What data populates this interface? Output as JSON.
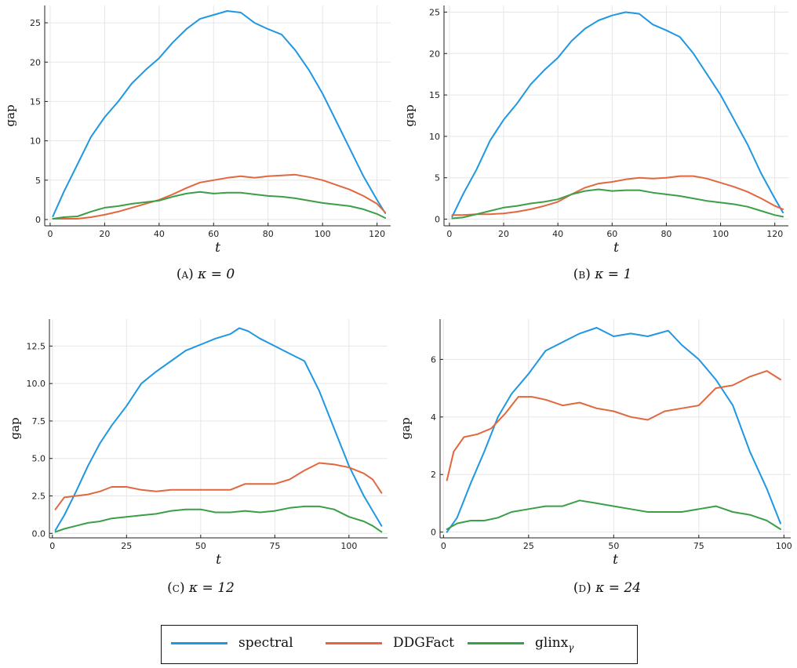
{
  "colors": {
    "spectral": "#1f97e2",
    "ddgfact": "#e2673f",
    "glinx": "#3c9e47"
  },
  "legend": {
    "items": [
      {
        "key": "spectral",
        "label": "spectral"
      },
      {
        "key": "ddgfact",
        "label": "DDGFact"
      },
      {
        "key": "glinx",
        "label": "glinx",
        "sub": "γ"
      }
    ]
  },
  "chart_data": [
    {
      "type": "line",
      "caption": {
        "letter": "(a)",
        "kappa": "κ = 0"
      },
      "xlabel": "t",
      "ylabel": "gap",
      "xlim": [
        -2,
        125
      ],
      "ylim": [
        -0.8,
        27.2
      ],
      "xticks": [
        0,
        20,
        40,
        60,
        80,
        100,
        120
      ],
      "yticks": [
        0,
        5,
        10,
        15,
        20,
        25
      ],
      "grid": true,
      "series": [
        {
          "key": "spectral",
          "name": "spectral",
          "x": [
            1,
            5,
            10,
            15,
            20,
            25,
            30,
            35,
            40,
            45,
            50,
            55,
            60,
            65,
            70,
            75,
            80,
            85,
            90,
            95,
            100,
            105,
            110,
            115,
            120,
            123
          ],
          "y": [
            0.4,
            3.5,
            7.0,
            10.5,
            13.0,
            15.0,
            17.3,
            19.0,
            20.5,
            22.5,
            24.2,
            25.5,
            26.0,
            26.5,
            26.3,
            25.0,
            24.2,
            23.5,
            21.5,
            19.0,
            16.0,
            12.5,
            9.0,
            5.5,
            2.5,
            0.8
          ]
        },
        {
          "key": "ddgfact",
          "name": "DDGFact",
          "x": [
            1,
            5,
            10,
            15,
            20,
            25,
            30,
            35,
            40,
            45,
            50,
            55,
            60,
            65,
            70,
            75,
            80,
            85,
            90,
            95,
            100,
            105,
            110,
            115,
            120,
            123
          ],
          "y": [
            0.1,
            0.1,
            0.1,
            0.3,
            0.6,
            1.0,
            1.5,
            2.0,
            2.5,
            3.2,
            4.0,
            4.7,
            5.0,
            5.3,
            5.5,
            5.3,
            5.5,
            5.6,
            5.7,
            5.4,
            5.0,
            4.4,
            3.8,
            3.0,
            2.0,
            0.9
          ]
        },
        {
          "key": "glinx",
          "name": "glinx",
          "x": [
            1,
            5,
            10,
            15,
            20,
            25,
            30,
            35,
            40,
            45,
            50,
            55,
            60,
            65,
            70,
            75,
            80,
            85,
            90,
            95,
            100,
            105,
            110,
            115,
            120,
            123
          ],
          "y": [
            0.1,
            0.3,
            0.4,
            1.0,
            1.5,
            1.7,
            2.0,
            2.2,
            2.4,
            2.9,
            3.3,
            3.5,
            3.3,
            3.4,
            3.4,
            3.2,
            3.0,
            2.9,
            2.7,
            2.4,
            2.1,
            1.9,
            1.7,
            1.3,
            0.7,
            0.2
          ]
        }
      ]
    },
    {
      "type": "line",
      "caption": {
        "letter": "(b)",
        "kappa": "κ = 1"
      },
      "xlabel": "t",
      "ylabel": "gap",
      "xlim": [
        -2,
        125
      ],
      "ylim": [
        -0.8,
        25.8
      ],
      "xticks": [
        0,
        20,
        40,
        60,
        80,
        100,
        120
      ],
      "yticks": [
        0,
        5,
        10,
        15,
        20,
        25
      ],
      "grid": true,
      "series": [
        {
          "key": "spectral",
          "name": "spectral",
          "x": [
            1,
            5,
            10,
            15,
            20,
            25,
            30,
            35,
            40,
            45,
            50,
            55,
            60,
            65,
            70,
            75,
            80,
            85,
            90,
            95,
            100,
            105,
            110,
            115,
            120,
            123
          ],
          "y": [
            0.3,
            3.0,
            6.0,
            9.5,
            12.0,
            14.0,
            16.3,
            18.0,
            19.5,
            21.5,
            23.0,
            24.0,
            24.6,
            25.0,
            24.8,
            23.5,
            22.8,
            22.0,
            20.0,
            17.5,
            15.0,
            12.0,
            9.0,
            5.5,
            2.5,
            0.8
          ]
        },
        {
          "key": "ddgfact",
          "name": "DDGFact",
          "x": [
            1,
            5,
            10,
            15,
            20,
            25,
            30,
            35,
            40,
            45,
            50,
            55,
            60,
            65,
            70,
            75,
            80,
            85,
            90,
            95,
            100,
            105,
            110,
            115,
            120,
            123
          ],
          "y": [
            0.5,
            0.5,
            0.6,
            0.6,
            0.7,
            0.9,
            1.2,
            1.6,
            2.1,
            3.0,
            3.8,
            4.3,
            4.5,
            4.8,
            5.0,
            4.9,
            5.0,
            5.2,
            5.2,
            4.9,
            4.4,
            3.9,
            3.3,
            2.5,
            1.6,
            1.2
          ]
        },
        {
          "key": "glinx",
          "name": "glinx",
          "x": [
            1,
            5,
            10,
            15,
            20,
            25,
            30,
            35,
            40,
            45,
            50,
            55,
            60,
            65,
            70,
            75,
            80,
            85,
            90,
            95,
            100,
            105,
            110,
            115,
            120,
            123
          ],
          "y": [
            0.1,
            0.2,
            0.6,
            1.0,
            1.4,
            1.6,
            1.9,
            2.1,
            2.4,
            3.0,
            3.4,
            3.6,
            3.4,
            3.5,
            3.5,
            3.2,
            3.0,
            2.8,
            2.5,
            2.2,
            2.0,
            1.8,
            1.5,
            1.0,
            0.5,
            0.3
          ]
        }
      ]
    },
    {
      "type": "line",
      "caption": {
        "letter": "(c)",
        "kappa": "κ = 12"
      },
      "xlabel": "t",
      "ylabel": "gap",
      "xlim": [
        -1,
        113
      ],
      "ylim": [
        -0.3,
        14.3
      ],
      "xticks": [
        0,
        25,
        50,
        75,
        100
      ],
      "yticks": [
        0.0,
        2.5,
        5.0,
        7.5,
        10.0,
        12.5
      ],
      "ytick_labels": [
        "0.0",
        "2.5",
        "5.0",
        "7.5",
        "10.0",
        "12.5"
      ],
      "grid": true,
      "series": [
        {
          "key": "spectral",
          "name": "spectral",
          "x": [
            1,
            4,
            8,
            12,
            16,
            20,
            25,
            30,
            35,
            40,
            45,
            50,
            55,
            60,
            63,
            66,
            70,
            75,
            80,
            85,
            90,
            95,
            100,
            105,
            108,
            111
          ],
          "y": [
            0.2,
            1.2,
            2.8,
            4.5,
            6.0,
            7.2,
            8.5,
            10.0,
            10.8,
            11.5,
            12.2,
            12.6,
            13.0,
            13.3,
            13.7,
            13.5,
            13.0,
            12.5,
            12.0,
            11.5,
            9.5,
            7.0,
            4.5,
            2.5,
            1.5,
            0.5
          ]
        },
        {
          "key": "ddgfact",
          "name": "DDGFact",
          "x": [
            1,
            4,
            8,
            12,
            16,
            20,
            25,
            30,
            35,
            40,
            45,
            50,
            55,
            60,
            65,
            70,
            75,
            80,
            85,
            90,
            95,
            100,
            105,
            108,
            111
          ],
          "y": [
            1.6,
            2.4,
            2.5,
            2.6,
            2.8,
            3.1,
            3.1,
            2.9,
            2.8,
            2.9,
            2.9,
            2.9,
            2.9,
            2.9,
            3.3,
            3.3,
            3.3,
            3.6,
            4.2,
            4.7,
            4.6,
            4.4,
            4.0,
            3.6,
            2.7
          ]
        },
        {
          "key": "glinx",
          "name": "glinx",
          "x": [
            1,
            4,
            8,
            12,
            16,
            20,
            25,
            30,
            35,
            40,
            45,
            50,
            55,
            60,
            65,
            70,
            75,
            80,
            85,
            90,
            95,
            100,
            105,
            108,
            111
          ],
          "y": [
            0.1,
            0.3,
            0.5,
            0.7,
            0.8,
            1.0,
            1.1,
            1.2,
            1.3,
            1.5,
            1.6,
            1.6,
            1.4,
            1.4,
            1.5,
            1.4,
            1.5,
            1.7,
            1.8,
            1.8,
            1.6,
            1.1,
            0.8,
            0.5,
            0.1
          ]
        }
      ]
    },
    {
      "type": "line",
      "caption": {
        "letter": "(d)",
        "kappa": "κ = 24"
      },
      "xlabel": "t",
      "ylabel": "gap",
      "xlim": [
        -1,
        102
      ],
      "ylim": [
        -0.2,
        7.4
      ],
      "xticks": [
        0,
        25,
        50,
        75,
        100
      ],
      "yticks": [
        0,
        2,
        4,
        6
      ],
      "grid": true,
      "series": [
        {
          "key": "spectral",
          "name": "spectral",
          "x": [
            1,
            4,
            8,
            12,
            16,
            20,
            25,
            30,
            35,
            40,
            45,
            50,
            55,
            60,
            63,
            66,
            70,
            75,
            80,
            85,
            90,
            95,
            99
          ],
          "y": [
            0.0,
            0.5,
            1.7,
            2.8,
            4.0,
            4.8,
            5.5,
            6.3,
            6.6,
            6.9,
            7.1,
            6.8,
            6.9,
            6.8,
            6.9,
            7.0,
            6.5,
            6.0,
            5.3,
            4.4,
            2.8,
            1.5,
            0.3
          ]
        },
        {
          "key": "ddgfact",
          "name": "DDGFact",
          "x": [
            1,
            3,
            6,
            10,
            14,
            18,
            22,
            26,
            30,
            35,
            40,
            45,
            50,
            55,
            60,
            65,
            70,
            75,
            80,
            85,
            90,
            95,
            99
          ],
          "y": [
            1.8,
            2.8,
            3.3,
            3.4,
            3.6,
            4.1,
            4.7,
            4.7,
            4.6,
            4.4,
            4.5,
            4.3,
            4.2,
            4.0,
            3.9,
            4.2,
            4.3,
            4.4,
            5.0,
            5.1,
            5.4,
            5.6,
            5.3
          ]
        },
        {
          "key": "glinx",
          "name": "glinx",
          "x": [
            1,
            4,
            8,
            12,
            16,
            20,
            25,
            30,
            35,
            40,
            45,
            50,
            55,
            60,
            65,
            70,
            75,
            80,
            85,
            90,
            95,
            99
          ],
          "y": [
            0.1,
            0.3,
            0.4,
            0.4,
            0.5,
            0.7,
            0.8,
            0.9,
            0.9,
            1.1,
            1.0,
            0.9,
            0.8,
            0.7,
            0.7,
            0.7,
            0.8,
            0.9,
            0.7,
            0.6,
            0.4,
            0.1
          ]
        }
      ]
    }
  ]
}
